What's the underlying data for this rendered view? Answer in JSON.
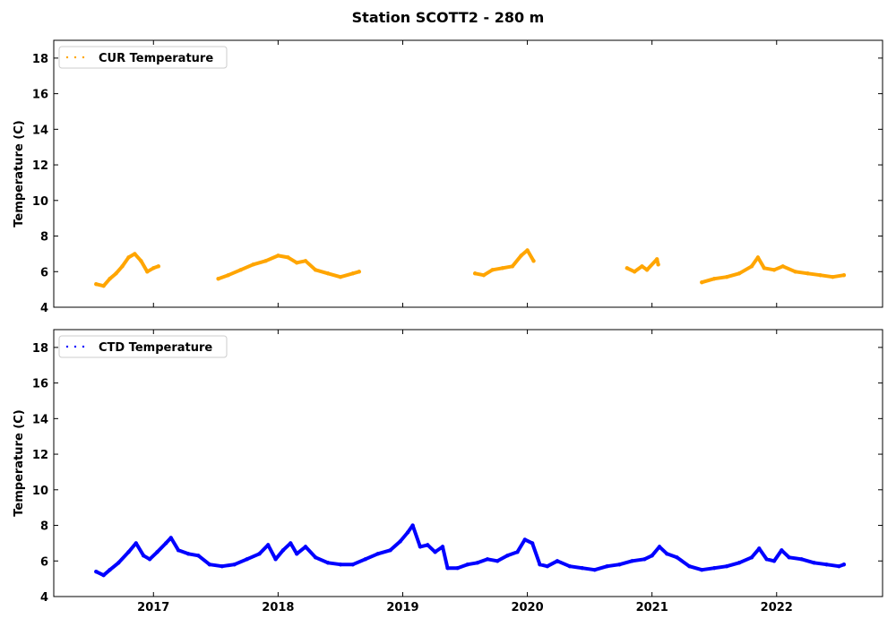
{
  "figure": {
    "title": "Station SCOTT2 - 280 m"
  },
  "chart_data": [
    {
      "type": "scatter",
      "title": "",
      "xlabel": "",
      "ylabel": "Temperature (C)",
      "ylim": [
        4,
        19
      ],
      "xlim": [
        2016.2,
        2022.85
      ],
      "yticks": [
        4,
        6,
        8,
        10,
        12,
        14,
        16,
        18
      ],
      "xticks": [
        2017,
        2018,
        2019,
        2020,
        2021,
        2022
      ],
      "xtick_labels_visible": false,
      "grid": false,
      "legend_placement": "top-left",
      "series": [
        {
          "name": "CUR Temperature",
          "color": "#ffa500",
          "segments": [
            {
              "x": [
                2016.54,
                2016.6,
                2016.65,
                2016.7,
                2016.75,
                2016.8,
                2016.85,
                2016.9,
                2016.95,
                2017.0,
                2017.04
              ],
              "y": [
                5.3,
                5.2,
                5.6,
                5.9,
                6.3,
                6.8,
                7.0,
                6.6,
                6.0,
                6.2,
                6.3
              ]
            },
            {
              "x": [
                2017.52,
                2017.6,
                2017.7,
                2017.8,
                2017.9,
                2018.0,
                2018.08,
                2018.15,
                2018.22,
                2018.3,
                2018.4,
                2018.5,
                2018.6,
                2018.65
              ],
              "y": [
                5.6,
                5.8,
                6.1,
                6.4,
                6.6,
                6.9,
                6.8,
                6.5,
                6.6,
                6.1,
                5.9,
                5.7,
                5.9,
                6.0
              ]
            },
            {
              "x": [
                2019.58,
                2019.65,
                2019.72,
                2019.8,
                2019.88,
                2019.95,
                2020.0,
                2020.05
              ],
              "y": [
                5.9,
                5.8,
                6.1,
                6.2,
                6.3,
                6.9,
                7.2,
                6.6
              ]
            },
            {
              "x": [
                2020.8,
                2020.86,
                2020.92,
                2020.96,
                2021.04,
                2021.05
              ],
              "y": [
                6.2,
                6.0,
                6.3,
                6.1,
                6.7,
                6.4
              ]
            },
            {
              "x": [
                2021.4,
                2021.5,
                2021.6,
                2021.7,
                2021.8,
                2021.85,
                2021.9,
                2021.98,
                2022.05,
                2022.15,
                2022.25,
                2022.35,
                2022.45,
                2022.54
              ],
              "y": [
                5.4,
                5.6,
                5.7,
                5.9,
                6.3,
                6.8,
                6.2,
                6.1,
                6.3,
                6.0,
                5.9,
                5.8,
                5.7,
                5.8
              ]
            }
          ]
        }
      ]
    },
    {
      "type": "scatter",
      "title": "",
      "xlabel": "",
      "ylabel": "Temperature (C)",
      "ylim": [
        4,
        19
      ],
      "xlim": [
        2016.2,
        2022.85
      ],
      "yticks": [
        4,
        6,
        8,
        10,
        12,
        14,
        16,
        18
      ],
      "xticks": [
        2017,
        2018,
        2019,
        2020,
        2021,
        2022
      ],
      "xtick_labels_visible": true,
      "grid": false,
      "legend_placement": "top-left",
      "series": [
        {
          "name": "CTD Temperature",
          "color": "#0000ff",
          "segments": [
            {
              "x": [
                2016.54,
                2016.6,
                2016.65,
                2016.72,
                2016.8,
                2016.86,
                2016.92,
                2016.97,
                2017.03,
                2017.1,
                2017.14,
                2017.2,
                2017.28,
                2017.36,
                2017.45,
                2017.55,
                2017.65,
                2017.75,
                2017.85,
                2017.92,
                2017.98,
                2018.04,
                2018.1,
                2018.15,
                2018.22,
                2018.3,
                2018.4,
                2018.5,
                2018.6,
                2018.7,
                2018.8,
                2018.9,
                2018.98,
                2019.04,
                2019.08,
                2019.14,
                2019.2,
                2019.26,
                2019.32,
                2019.36,
                2019.44,
                2019.52,
                2019.6,
                2019.68,
                2019.76,
                2019.84,
                2019.92,
                2019.98,
                2020.04,
                2020.1,
                2020.16,
                2020.24,
                2020.34,
                2020.44,
                2020.54,
                2020.64,
                2020.74,
                2020.84,
                2020.94,
                2021.0,
                2021.06,
                2021.12,
                2021.2,
                2021.3,
                2021.4,
                2021.5,
                2021.6,
                2021.7,
                2021.8,
                2021.86,
                2021.92,
                2021.98,
                2022.04,
                2022.1,
                2022.2,
                2022.3,
                2022.4,
                2022.5,
                2022.54
              ],
              "y": [
                5.4,
                5.2,
                5.5,
                5.9,
                6.5,
                7.0,
                6.3,
                6.1,
                6.5,
                7.0,
                7.3,
                6.6,
                6.4,
                6.3,
                5.8,
                5.7,
                5.8,
                6.1,
                6.4,
                6.9,
                6.1,
                6.6,
                7.0,
                6.4,
                6.8,
                6.2,
                5.9,
                5.8,
                5.8,
                6.1,
                6.4,
                6.6,
                7.1,
                7.6,
                8.0,
                6.8,
                6.9,
                6.5,
                6.8,
                5.6,
                5.6,
                5.8,
                5.9,
                6.1,
                6.0,
                6.3,
                6.5,
                7.2,
                7.0,
                5.8,
                5.7,
                6.0,
                5.7,
                5.6,
                5.5,
                5.7,
                5.8,
                6.0,
                6.1,
                6.3,
                6.8,
                6.4,
                6.2,
                5.7,
                5.5,
                5.6,
                5.7,
                5.9,
                6.2,
                6.7,
                6.1,
                6.0,
                6.6,
                6.2,
                6.1,
                5.9,
                5.8,
                5.7,
                5.8
              ]
            }
          ]
        }
      ]
    }
  ]
}
